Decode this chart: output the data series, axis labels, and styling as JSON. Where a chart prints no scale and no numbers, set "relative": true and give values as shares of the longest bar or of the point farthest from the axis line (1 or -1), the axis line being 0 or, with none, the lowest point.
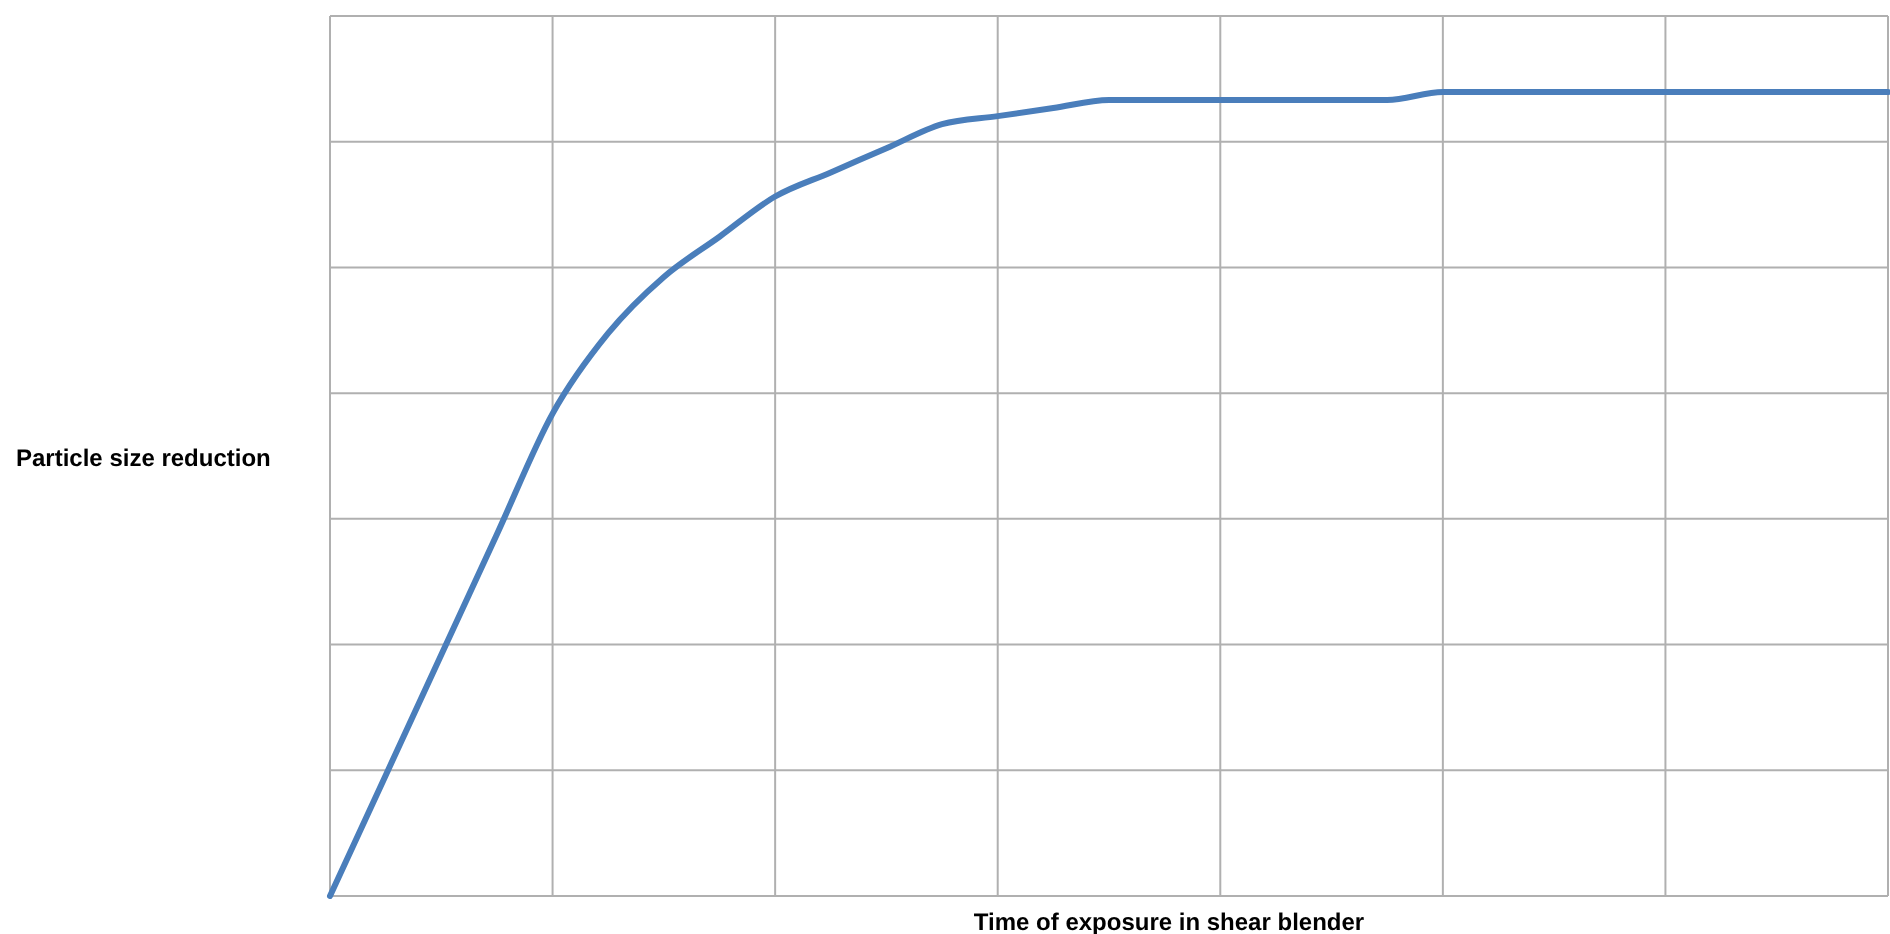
{
  "chart_data": {
    "type": "line",
    "relative": true,
    "xlabel": "Time of exposure in shear blender",
    "ylabel": "Particle size reduction",
    "grid": true,
    "line_style": "solid",
    "categories": [
      null,
      null,
      null,
      null,
      null,
      null,
      null,
      null,
      null,
      null,
      null,
      null,
      null,
      null,
      null,
      null,
      null,
      null,
      null,
      null,
      null,
      null,
      null,
      null,
      null,
      null,
      null,
      null,
      null
    ],
    "series": [
      {
        "color": "#4a7ebb",
        "values": [
          0,
          0.15,
          0.3,
          0.45,
          0.6,
          0.7,
          0.77,
          0.82,
          0.87,
          0.9,
          0.93,
          0.96,
          0.97,
          0.98,
          0.99,
          0.99,
          0.99,
          0.99,
          0.99,
          0.99,
          1,
          1,
          1,
          1,
          1,
          1,
          1,
          1,
          1
        ]
      }
    ]
  }
}
